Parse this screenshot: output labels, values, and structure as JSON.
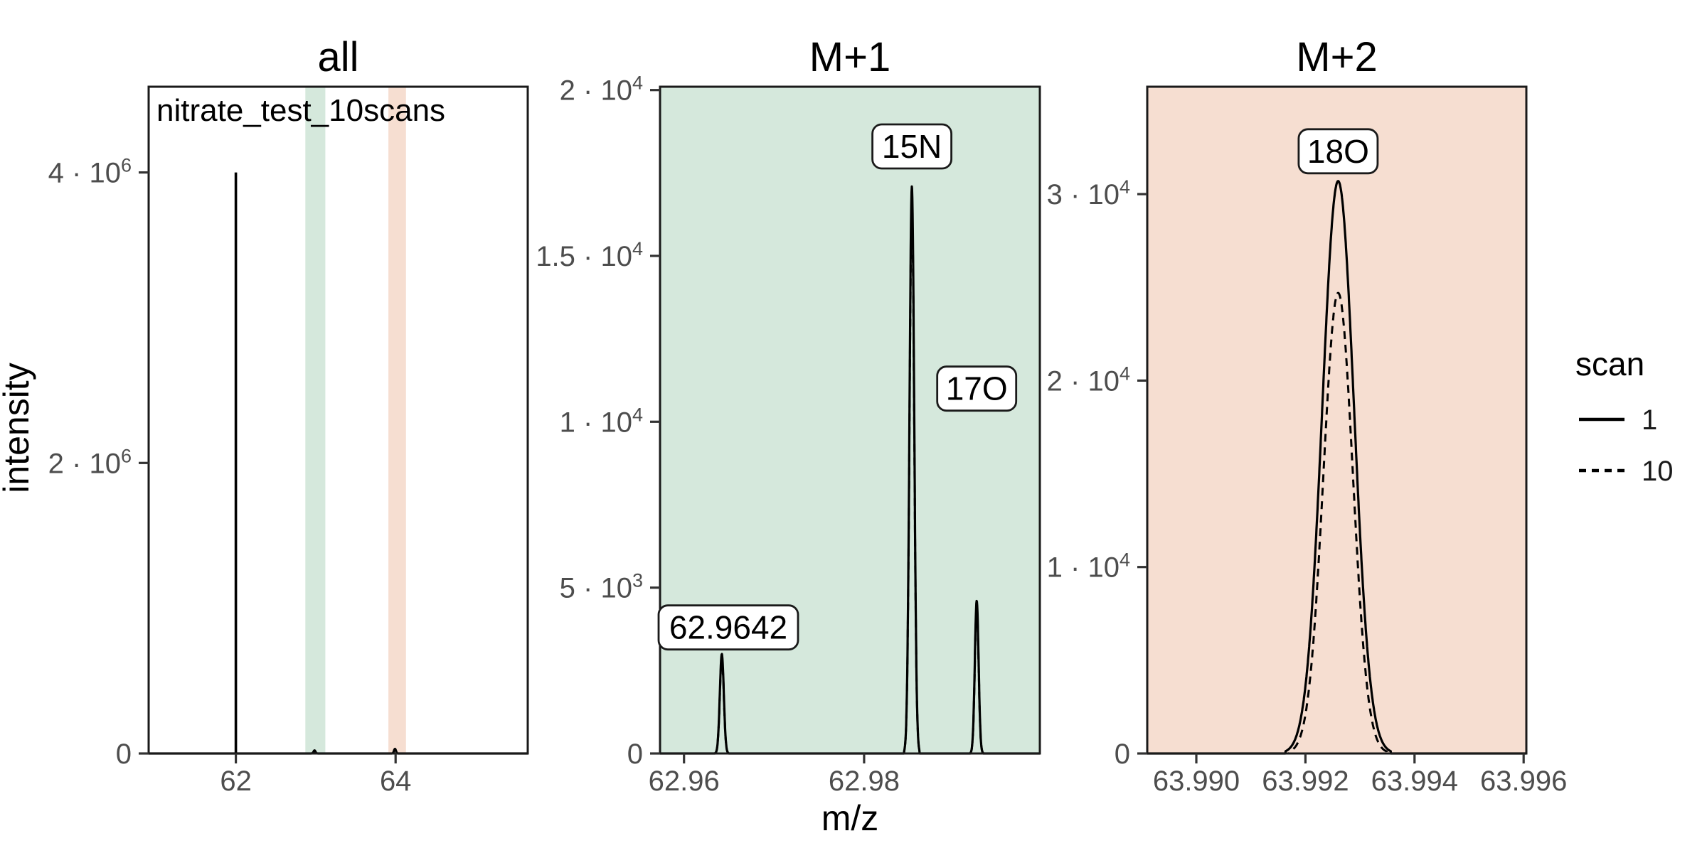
{
  "figure": {
    "xlabel": "m/z",
    "ylabel": "intensity"
  },
  "legend": {
    "title": "scan",
    "items": [
      {
        "label": "1",
        "style": "solid"
      },
      {
        "label": "10",
        "style": "dashed"
      }
    ]
  },
  "colors": {
    "m1_fill": "#d5e8dc",
    "m2_fill": "#f6ded1",
    "line": "#000000",
    "tick_text": "#4d4d4d",
    "border": "#1a1a1a",
    "label_box_fill": "#ffffff",
    "title_text": "#000000"
  },
  "chart_data": {
    "type": "line",
    "xlabel": "m/z",
    "ylabel": "intensity",
    "series": [
      {
        "name": "1",
        "style": "solid"
      },
      {
        "name": "10",
        "style": "dashed"
      }
    ],
    "panels": [
      {
        "title": "all",
        "background_key": "none",
        "annotation": "nitrate_test_10scans",
        "xlim": [
          60.908,
          65.655
        ],
        "ylim": [
          0,
          4590000
        ],
        "xticks": [
          {
            "v": 62,
            "label": "62"
          },
          {
            "v": 64,
            "label": "64"
          }
        ],
        "yticks": [
          {
            "v": 0,
            "label": "0"
          },
          {
            "v": 2000000,
            "label": "2 · 10^6"
          },
          {
            "v": 4000000,
            "label": "4 · 10^6"
          }
        ],
        "bands": [
          {
            "x0": 62.87,
            "x1": 63.12,
            "color_key": "m1_fill"
          },
          {
            "x0": 63.91,
            "x1": 64.13,
            "color_key": "m2_fill"
          }
        ],
        "peaks": [
          {
            "mz": 62.0,
            "shape": "spike",
            "h_scan1": 4000000,
            "h_scan10": 4000000,
            "sigma": 0.0015
          },
          {
            "mz": 62.985,
            "h_scan1": 21000,
            "h_scan10": 21000,
            "sigma": 0.012
          },
          {
            "mz": 63.9926,
            "h_scan1": 32000,
            "h_scan10": 32000,
            "sigma": 0.012
          }
        ],
        "peak_labels": []
      },
      {
        "title": "M+1",
        "background_key": "m1_fill",
        "annotation": null,
        "xlim": [
          62.95734,
          62.99951
        ],
        "ylim": [
          0,
          20100
        ],
        "xticks": [
          {
            "v": 62.96,
            "label": "62.96"
          },
          {
            "v": 62.98,
            "label": "62.98"
          }
        ],
        "yticks": [
          {
            "v": 0,
            "label": "0"
          },
          {
            "v": 5000,
            "label": "5 · 10^3"
          },
          {
            "v": 10000,
            "label": "1 · 10^4"
          },
          {
            "v": 15000,
            "label": "1.5 · 10^4"
          },
          {
            "v": 20000,
            "label": "2 · 10^4"
          }
        ],
        "bands": [],
        "peaks": [
          {
            "mz": 62.9642,
            "h_scan1": 3000,
            "h_scan10": 2900,
            "sigma": 0.00022
          },
          {
            "mz": 62.9853,
            "h_scan1": 17100,
            "h_scan10": 16600,
            "sigma": 0.00026
          },
          {
            "mz": 62.9925,
            "h_scan1": 4600,
            "h_scan10": 4450,
            "sigma": 0.00021
          }
        ],
        "peak_labels": [
          {
            "text": "62.9642",
            "mz": 62.9642,
            "y": 3800
          },
          {
            "text": "15N",
            "mz": 62.9853,
            "y": 18300
          },
          {
            "text": "17O",
            "mz": 62.9925,
            "y": 11000
          }
        ]
      },
      {
        "title": "M+2",
        "background_key": "m2_fill",
        "annotation": null,
        "xlim": [
          63.9891,
          63.99605
        ],
        "ylim": [
          0,
          35760
        ],
        "xticks": [
          {
            "v": 63.99,
            "label": "63.990"
          },
          {
            "v": 63.992,
            "label": "63.992"
          },
          {
            "v": 63.994,
            "label": "63.994"
          },
          {
            "v": 63.996,
            "label": "63.996"
          }
        ],
        "yticks": [
          {
            "v": 0,
            "label": "0"
          },
          {
            "v": 10000,
            "label": "1 · 10^4"
          },
          {
            "v": 20000,
            "label": "2 · 10^4"
          },
          {
            "v": 30000,
            "label": "3 · 10^4"
          }
        ],
        "bands": [],
        "peaks": [
          {
            "mz": 63.9926,
            "h_scan1": 30700,
            "h_scan10": 24700,
            "sigma": 0.00029,
            "sigma_scan10": 0.00027
          }
        ],
        "peak_labels": [
          {
            "text": "18O",
            "mz": 63.9926,
            "y": 32300
          }
        ]
      }
    ]
  }
}
